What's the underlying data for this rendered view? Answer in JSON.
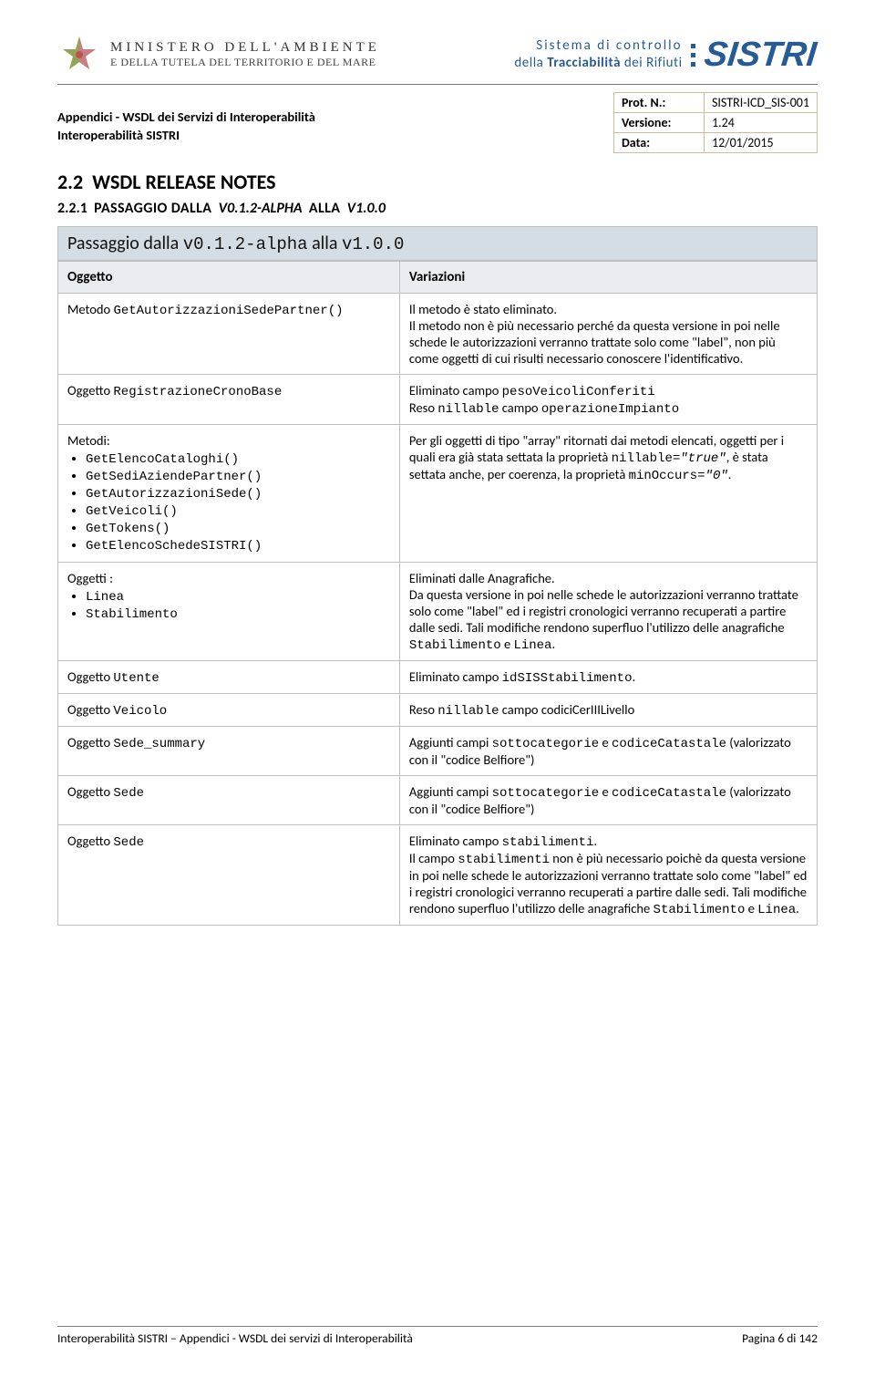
{
  "header": {
    "ministry_line1": "MINISTERO DELL'AMBIENTE",
    "ministry_line2": "E DELLA TUTELA DEL TERRITORIO E DEL MARE",
    "tagline_line1": "Sistema di controllo",
    "tagline_prefix": "della ",
    "tagline_bold": "Tracciabilità",
    "tagline_suffix": " dei Rifiuti",
    "sistri_word": "SISTRI"
  },
  "subheader": {
    "left_line1": "Appendici - WSDL dei Servizi di Interoperabilità",
    "left_line2": "Interoperabilità SISTRI",
    "rows": [
      {
        "k": "Prot. N.:",
        "v": "SISTRI-ICD_SIS-001"
      },
      {
        "k": "Versione:",
        "v": "1.24"
      },
      {
        "k": "Data:",
        "v": "12/01/2015"
      }
    ]
  },
  "section": {
    "num": "2.2",
    "title": "WSDL RELEASE NOTES",
    "sub_num": "2.2.1",
    "sub_word1": "PASSAGGIO DALLA",
    "sub_v1": "V0.1.2-ALPHA",
    "sub_word2": "ALLA",
    "sub_v2": "V1.0.0"
  },
  "banner": {
    "prefix": "Passaggio dalla ",
    "v1": "v0.1.2-alpha",
    "mid": "  alla  ",
    "v2": "v1.0.0"
  },
  "table": {
    "head_l": "Oggetto",
    "head_r": "Variazioni",
    "rows": [
      {
        "left_plain": "Metodo ",
        "left_mono": "GetAutorizzazioniSedePartner()",
        "right_html": "Il metodo è stato eliminato.<br>Il metodo non è più necessario perché da questa versione in poi nelle schede le autorizzazioni verranno trattate solo come \"label\", non più come oggetti di cui risulti necessario conoscere l'identificativo."
      },
      {
        "left_plain": "Oggetto ",
        "left_mono": "RegistrazioneCronoBase",
        "right_html": "Eliminato campo <span class=\"mono\">pesoVeicoliConferiti</span><br>Reso <span class=\"mono\">nillable</span> campo <span class=\"mono\">operazioneImpianto</span>"
      },
      {
        "left_heading": "Metodi:",
        "left_list": [
          "GetElencoCataloghi()",
          "GetSediAziendePartner()",
          "GetAutorizzazioniSede()",
          "GetVeicoli()",
          "GetTokens()",
          "GetElencoSchedeSISTRI()"
        ],
        "right_html": "Per gli oggetti di tipo \"array\" ritornati dai metodi elencati, oggetti per i quali era già stata settata la proprietà <span class=\"mono\">nillable=<i>\"true\"</i></span>, è stata settata anche, per coerenza, la proprietà <span class=\"mono\">minOccurs=<i>\"0\"</i></span>."
      },
      {
        "left_heading": "Oggetti :",
        "left_list": [
          "Linea",
          "Stabilimento"
        ],
        "right_html": "Eliminati dalle Anagrafiche.<br>Da questa versione in poi nelle schede le autorizzazioni verranno trattate solo come \"label\" ed i registri cronologici verranno recuperati a partire dalle sedi. Tali modifiche rendono superfluo l'utilizzo delle anagrafiche <span class=\"mono\">Stabilimento</span> e <span class=\"mono\">Linea</span>."
      },
      {
        "left_plain": "Oggetto ",
        "left_mono": "Utente",
        "right_html": "Eliminato campo <span class=\"mono\">idSISStabilimento</span>."
      },
      {
        "left_plain": "Oggetto ",
        "left_mono": "Veicolo",
        "right_html": "Reso <span class=\"mono\">nillable</span> campo codiciCerIIILivello"
      },
      {
        "left_plain": "Oggetto ",
        "left_mono": "Sede_summary",
        "right_html": "Aggiunti campi <span class=\"mono\">sottocategorie</span> e <span class=\"mono\">codiceCatastale</span> (valorizzato con il \"codice Belfiore\")"
      },
      {
        "left_plain": "Oggetto ",
        "left_mono": "Sede",
        "right_html": "Aggiunti campi <span class=\"mono\">sottocategorie</span> e <span class=\"mono\">codiceCatastale</span> (valorizzato con il \"codice Belfiore\")"
      },
      {
        "left_plain": "Oggetto ",
        "left_mono": "Sede",
        "right_html": "Eliminato campo <span class=\"mono\">stabilimenti</span>.<br>Il campo <span class=\"mono\">stabilimenti</span> non è più necessario poichè da questa versione in poi nelle schede le autorizzazioni verranno trattate solo come \"label\" ed i registri cronologici verranno recuperati a partire dalle sedi. Tali modifiche rendono superfluo l'utilizzo delle anagrafiche <span class=\"mono\">Stabilimento</span> e <span class=\"mono\">Linea</span>."
      }
    ]
  },
  "footer": {
    "left": "Interoperabilità SISTRI – Appendici - WSDL dei servizi di Interoperabilità",
    "right": "Pagina 6 di 142"
  },
  "colors": {
    "brand": "#265b94",
    "banner_bg": "#d5dde4",
    "border": "#bfbfbf",
    "meta_border": "#cdbda0"
  }
}
